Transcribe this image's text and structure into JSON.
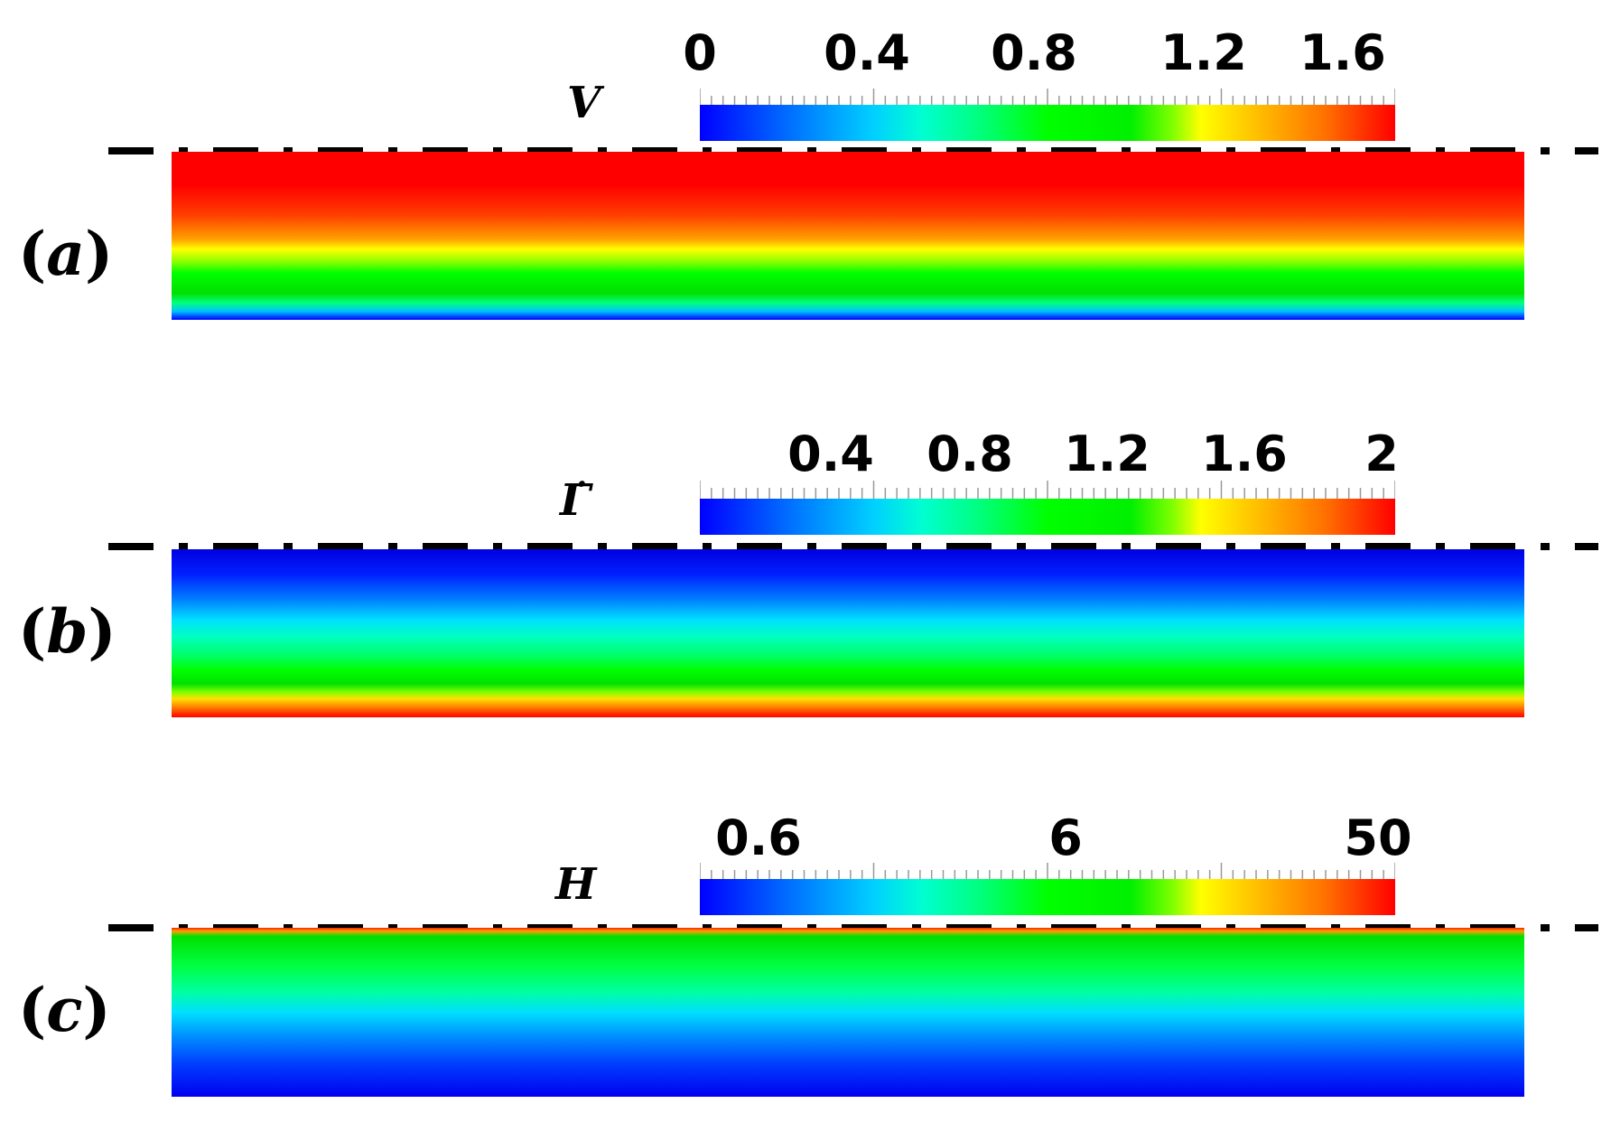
{
  "panels": [
    {
      "id": "a",
      "label_open": "(",
      "label_letter": "a",
      "label_close": ")",
      "variable": "V",
      "colorbar_ticks": [
        "0",
        "0.4",
        "0.8",
        "1.2",
        "1.6"
      ],
      "field_description": "red near centerline to blue at wall"
    },
    {
      "id": "b",
      "label_open": "(",
      "label_letter": "b",
      "label_close": ")",
      "variable": "Γ̇",
      "colorbar_ticks": [
        "0.4",
        "0.8",
        "1.2",
        "1.6",
        "2"
      ],
      "field_description": "blue near centerline to red at wall"
    },
    {
      "id": "c",
      "label_open": "(",
      "label_letter": "c",
      "label_close": ")",
      "variable": "H",
      "colorbar_ticks": [
        "0.6",
        "6",
        "50"
      ],
      "field_description": "red thin layer at centerline, green to blue toward wall"
    }
  ],
  "colors": {
    "colormap": [
      "#0000ff",
      "#00ffff",
      "#00ff00",
      "#ffff00",
      "#ff0000"
    ],
    "axis_line": "#000000"
  }
}
